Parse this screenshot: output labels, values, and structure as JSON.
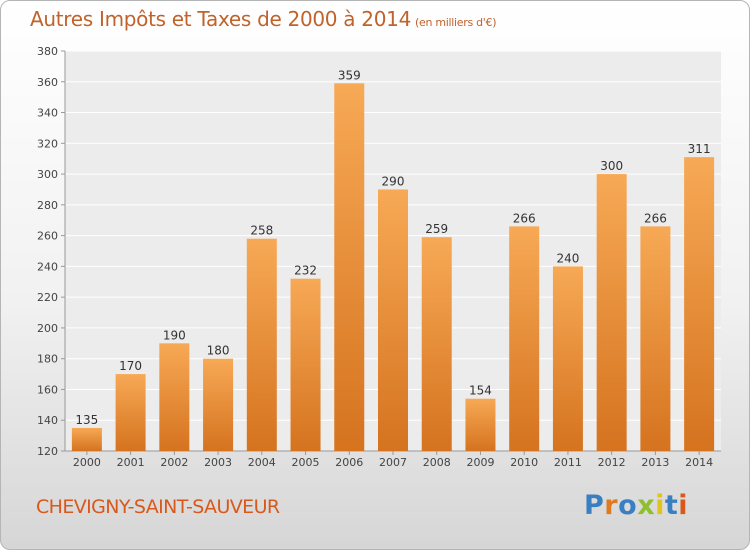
{
  "title": "Autres Impôts et Taxes de 2000 à 2014",
  "subtitle": "(en milliers d'€)",
  "commune": "CHEVIGNY-SAINT-SAUVEUR",
  "logo": {
    "text": "Proxiti",
    "letter_colors": [
      "#3a7fc2",
      "#e07a1f",
      "#3a7fc2",
      "#8fbf2f",
      "#e2c31a",
      "#3a7fc2",
      "#d9581c"
    ]
  },
  "colors": {
    "bar_light": "#f7a955",
    "bar_dark": "#d5731f",
    "title": "#c0622b",
    "commune": "#d9581c"
  },
  "chart_data": {
    "type": "bar",
    "categories": [
      "2000",
      "2001",
      "2002",
      "2003",
      "2004",
      "2005",
      "2006",
      "2007",
      "2008",
      "2009",
      "2010",
      "2011",
      "2012",
      "2013",
      "2014"
    ],
    "values": [
      135,
      170,
      190,
      180,
      258,
      232,
      359,
      290,
      259,
      154,
      266,
      240,
      300,
      266,
      311
    ],
    "ylim": [
      120,
      380
    ],
    "yticks": [
      120,
      140,
      160,
      180,
      200,
      220,
      240,
      260,
      280,
      300,
      320,
      340,
      360,
      380
    ],
    "grid": true,
    "legend": "none"
  }
}
